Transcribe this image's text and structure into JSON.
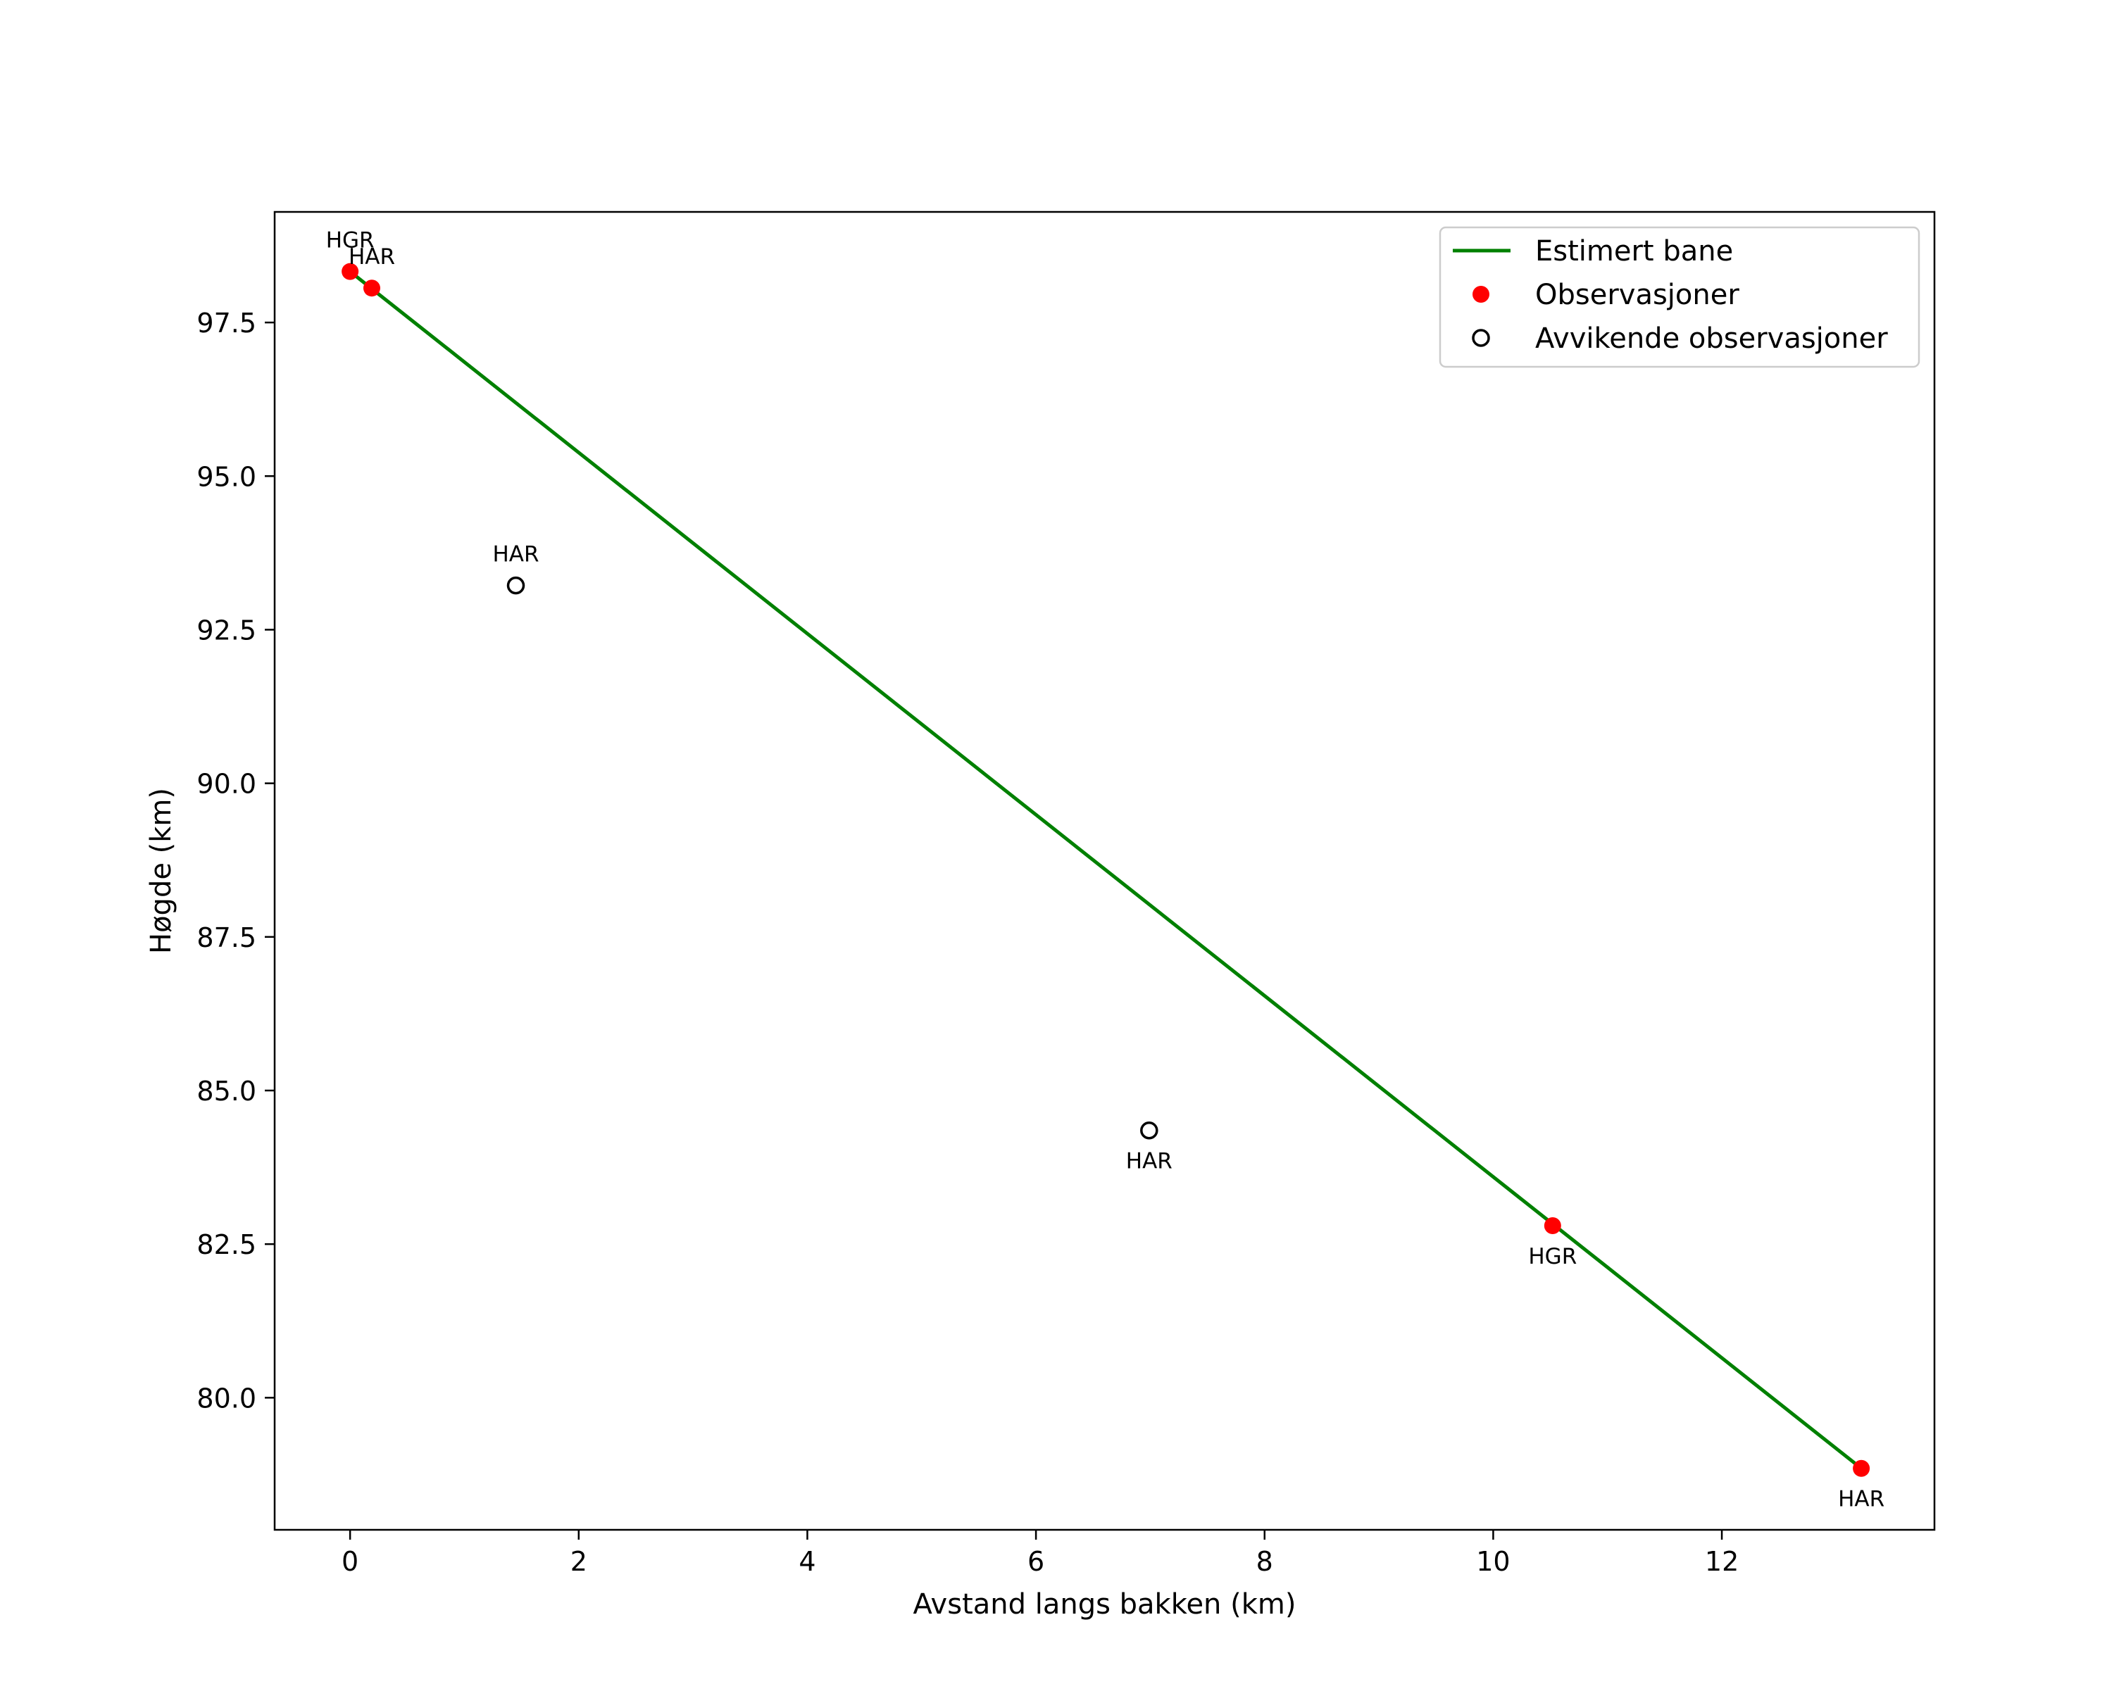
{
  "chart_data": {
    "type": "scatter",
    "title": "",
    "xlabel": "Avstand langs bakken (km)",
    "ylabel": "Høgde (km)",
    "xlim": [
      -0.66,
      13.86
    ],
    "ylim": [
      77.85,
      99.3
    ],
    "xticks": [
      0,
      2,
      4,
      6,
      8,
      10,
      12
    ],
    "xtick_labels": [
      "0",
      "2",
      "4",
      "6",
      "8",
      "10",
      "12"
    ],
    "yticks": [
      80.0,
      82.5,
      85.0,
      87.5,
      90.0,
      92.5,
      95.0,
      97.5
    ],
    "ytick_labels": [
      "80.0",
      "82.5",
      "85.0",
      "87.5",
      "90.0",
      "92.5",
      "95.0",
      "97.5"
    ],
    "grid": false,
    "legend_position": "top-right",
    "series": [
      {
        "name": "Estimert bane",
        "kind": "line",
        "color": "#008000",
        "points": [
          {
            "x": 0.0,
            "y": 98.33
          },
          {
            "x": 13.22,
            "y": 78.85
          }
        ]
      },
      {
        "name": "Observasjoner",
        "kind": "marker-filled",
        "color": "#ff0000",
        "points": [
          {
            "x": 0.0,
            "y": 98.33,
            "label": "HGR",
            "label_pos": "above"
          },
          {
            "x": 0.19,
            "y": 98.06,
            "label": "HAR",
            "label_pos": "above"
          },
          {
            "x": 10.52,
            "y": 82.8,
            "label": "HGR",
            "label_pos": "below"
          },
          {
            "x": 13.22,
            "y": 78.85,
            "label": "HAR",
            "label_pos": "below"
          }
        ]
      },
      {
        "name": "Avvikende observasjoner",
        "kind": "marker-open",
        "color": "#000000",
        "points": [
          {
            "x": 1.45,
            "y": 93.22,
            "label": "HAR",
            "label_pos": "above"
          },
          {
            "x": 6.99,
            "y": 84.35,
            "label": "HAR",
            "label_pos": "below"
          }
        ]
      }
    ]
  }
}
